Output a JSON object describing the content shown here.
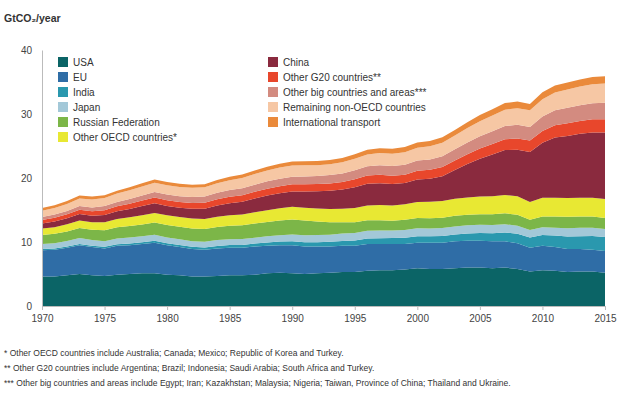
{
  "chart_data": {
    "type": "area",
    "stacked": true,
    "y_label": "GtCO₂/year",
    "x": [
      1970,
      1971,
      1972,
      1973,
      1974,
      1975,
      1976,
      1977,
      1978,
      1979,
      1980,
      1981,
      1982,
      1983,
      1984,
      1985,
      1986,
      1987,
      1988,
      1989,
      1990,
      1991,
      1992,
      1993,
      1994,
      1995,
      1996,
      1997,
      1998,
      1999,
      2000,
      2001,
      2002,
      2003,
      2004,
      2005,
      2006,
      2007,
      2008,
      2009,
      2010,
      2011,
      2012,
      2013,
      2014,
      2015
    ],
    "xlim": [
      1970,
      2015
    ],
    "xticks": [
      1970,
      1975,
      1980,
      1985,
      1990,
      1995,
      2000,
      2005,
      2010,
      2015
    ],
    "ylim": [
      0,
      40
    ],
    "yticks": [
      0,
      10,
      20,
      30,
      40
    ],
    "grid": false,
    "legend": "top-left",
    "series": [
      {
        "name": "USA",
        "color": "#0b6466",
        "values": [
          4.6,
          4.6,
          4.8,
          5.0,
          4.8,
          4.7,
          4.9,
          5.0,
          5.1,
          5.1,
          4.9,
          4.8,
          4.6,
          4.6,
          4.7,
          4.8,
          4.8,
          4.9,
          5.1,
          5.2,
          5.1,
          5.0,
          5.1,
          5.2,
          5.3,
          5.3,
          5.5,
          5.6,
          5.6,
          5.7,
          5.9,
          5.8,
          5.8,
          5.9,
          6.0,
          6.0,
          5.9,
          6.0,
          5.8,
          5.4,
          5.6,
          5.5,
          5.3,
          5.4,
          5.4,
          5.2
        ]
      },
      {
        "name": "EU",
        "color": "#2f6da6",
        "values": [
          4.1,
          4.2,
          4.3,
          4.5,
          4.4,
          4.3,
          4.5,
          4.5,
          4.6,
          4.8,
          4.6,
          4.4,
          4.3,
          4.2,
          4.3,
          4.3,
          4.3,
          4.4,
          4.3,
          4.3,
          4.4,
          4.3,
          4.2,
          4.1,
          4.1,
          4.1,
          4.2,
          4.1,
          4.1,
          4.0,
          4.0,
          4.1,
          4.1,
          4.2,
          4.2,
          4.2,
          4.2,
          4.1,
          4.0,
          3.7,
          3.8,
          3.7,
          3.6,
          3.5,
          3.4,
          3.4
        ]
      },
      {
        "name": "India",
        "color": "#2a98ae",
        "values": [
          0.2,
          0.2,
          0.2,
          0.2,
          0.2,
          0.25,
          0.25,
          0.27,
          0.28,
          0.3,
          0.3,
          0.32,
          0.34,
          0.36,
          0.38,
          0.42,
          0.45,
          0.48,
          0.52,
          0.56,
          0.6,
          0.65,
          0.68,
          0.72,
          0.76,
          0.82,
          0.86,
          0.9,
          0.92,
          0.96,
          1.0,
          1.0,
          1.05,
          1.08,
          1.14,
          1.2,
          1.28,
          1.38,
          1.48,
          1.62,
          1.7,
          1.8,
          1.95,
          2.0,
          2.15,
          2.2
        ]
      },
      {
        "name": "Japan",
        "color": "#a3c8d8",
        "values": [
          0.8,
          0.82,
          0.86,
          0.92,
          0.9,
          0.88,
          0.9,
          0.92,
          0.9,
          0.94,
          0.92,
          0.9,
          0.88,
          0.88,
          0.92,
          0.9,
          0.9,
          0.9,
          0.96,
          1.0,
          1.08,
          1.1,
          1.12,
          1.1,
          1.16,
          1.18,
          1.2,
          1.2,
          1.16,
          1.2,
          1.24,
          1.22,
          1.24,
          1.26,
          1.26,
          1.28,
          1.26,
          1.3,
          1.24,
          1.16,
          1.22,
          1.24,
          1.3,
          1.32,
          1.28,
          1.24
        ]
      },
      {
        "name": "Russian Federation",
        "color": "#7cb648",
        "values": [
          1.4,
          1.45,
          1.5,
          1.55,
          1.6,
          1.7,
          1.75,
          1.8,
          1.85,
          1.9,
          1.95,
          1.95,
          2.0,
          2.0,
          2.05,
          2.1,
          2.15,
          2.2,
          2.25,
          2.3,
          2.35,
          2.3,
          2.1,
          1.95,
          1.75,
          1.7,
          1.65,
          1.6,
          1.55,
          1.6,
          1.6,
          1.6,
          1.6,
          1.65,
          1.65,
          1.65,
          1.7,
          1.7,
          1.75,
          1.6,
          1.68,
          1.75,
          1.78,
          1.75,
          1.75,
          1.72
        ]
      },
      {
        "name": "Other OECD countries*",
        "color": "#e8e833",
        "values": [
          1.0,
          1.05,
          1.1,
          1.2,
          1.2,
          1.25,
          1.3,
          1.38,
          1.44,
          1.5,
          1.5,
          1.52,
          1.54,
          1.55,
          1.6,
          1.65,
          1.7,
          1.78,
          1.84,
          1.92,
          1.98,
          2.0,
          2.05,
          2.1,
          2.12,
          2.22,
          2.3,
          2.38,
          2.38,
          2.44,
          2.52,
          2.55,
          2.6,
          2.65,
          2.72,
          2.78,
          2.82,
          2.88,
          2.86,
          2.78,
          2.9,
          2.92,
          2.95,
          2.95,
          2.94,
          2.95
        ]
      },
      {
        "name": "China",
        "color": "#8a2a3e",
        "values": [
          0.8,
          0.9,
          0.95,
          1.0,
          1.0,
          1.15,
          1.2,
          1.3,
          1.45,
          1.5,
          1.45,
          1.45,
          1.52,
          1.6,
          1.75,
          1.9,
          2.0,
          2.12,
          2.28,
          2.32,
          2.4,
          2.55,
          2.68,
          2.85,
          3.0,
          3.25,
          3.4,
          3.4,
          3.35,
          3.3,
          3.5,
          3.6,
          3.9,
          4.5,
          5.2,
          5.9,
          6.5,
          7.0,
          7.3,
          7.8,
          8.6,
          9.4,
          9.7,
          10.0,
          10.2,
          10.4
        ]
      },
      {
        "name": "Other G20 countries**",
        "color": "#e8472c",
        "values": [
          0.55,
          0.58,
          0.62,
          0.68,
          0.7,
          0.74,
          0.78,
          0.82,
          0.86,
          0.9,
          0.92,
          0.92,
          0.92,
          0.94,
          0.98,
          1.0,
          1.02,
          1.06,
          1.08,
          1.1,
          1.1,
          1.12,
          1.12,
          1.14,
          1.18,
          1.24,
          1.28,
          1.32,
          1.3,
          1.32,
          1.36,
          1.4,
          1.42,
          1.48,
          1.54,
          1.6,
          1.64,
          1.7,
          1.76,
          1.78,
          1.86,
          1.92,
          1.98,
          2.0,
          2.06,
          2.08
        ]
      },
      {
        "name": "Other big countries and areas***",
        "color": "#d38b80",
        "values": [
          0.45,
          0.48,
          0.52,
          0.56,
          0.6,
          0.64,
          0.68,
          0.74,
          0.8,
          0.86,
          0.88,
          0.9,
          0.92,
          0.96,
          1.0,
          1.04,
          1.08,
          1.12,
          1.16,
          1.18,
          1.2,
          1.22,
          1.26,
          1.3,
          1.34,
          1.4,
          1.44,
          1.5,
          1.52,
          1.56,
          1.6,
          1.64,
          1.7,
          1.76,
          1.84,
          1.92,
          2.0,
          2.06,
          2.12,
          2.14,
          2.26,
          2.34,
          2.4,
          2.46,
          2.5,
          2.56
        ]
      },
      {
        "name": "Remaining non-OECD countries",
        "color": "#f6c7a4",
        "values": [
          1.0,
          1.05,
          1.1,
          1.2,
          1.25,
          1.25,
          1.3,
          1.35,
          1.4,
          1.45,
          1.45,
          1.45,
          1.45,
          1.45,
          1.5,
          1.55,
          1.6,
          1.65,
          1.7,
          1.75,
          1.75,
          1.75,
          1.7,
          1.7,
          1.75,
          1.8,
          1.85,
          1.9,
          1.9,
          1.95,
          2.0,
          2.05,
          2.1,
          2.15,
          2.25,
          2.35,
          2.45,
          2.55,
          2.6,
          2.6,
          2.7,
          2.8,
          2.85,
          2.9,
          2.95,
          3.0
        ]
      },
      {
        "name": "International transport",
        "color": "#ea8a3b",
        "values": [
          0.4,
          0.42,
          0.44,
          0.46,
          0.45,
          0.45,
          0.46,
          0.48,
          0.5,
          0.52,
          0.5,
          0.49,
          0.48,
          0.48,
          0.5,
          0.52,
          0.54,
          0.56,
          0.58,
          0.6,
          0.62,
          0.62,
          0.64,
          0.66,
          0.68,
          0.7,
          0.72,
          0.76,
          0.78,
          0.8,
          0.84,
          0.82,
          0.84,
          0.86,
          0.92,
          0.96,
          1.0,
          1.04,
          1.04,
          1.0,
          1.06,
          1.08,
          1.1,
          1.12,
          1.14,
          1.16
        ]
      }
    ],
    "notes": [
      "* Other OECD countries include Australia; Canada; Mexico; Republic of Korea and Turkey.",
      "** Other G20 countries include Argentina; Brazil; Indonesia; Saudi Arabia; South Africa and Turkey.",
      "*** Other big countries and areas include Egypt; Iran; Kazakhstan; Malaysia; Nigeria; Taiwan, Province of China; Thailand and Ukraine."
    ]
  }
}
